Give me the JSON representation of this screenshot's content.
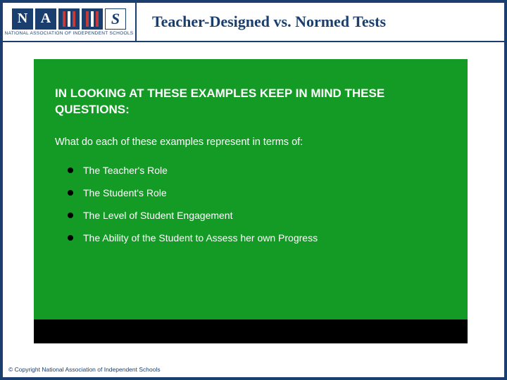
{
  "logo": {
    "letters": [
      "N",
      "A",
      "S"
    ],
    "subtitle": "NATIONAL ASSOCIATION OF INDEPENDENT SCHOOLS"
  },
  "header": {
    "title": "Teacher-Designed vs. Normed Tests"
  },
  "panel": {
    "heading": "IN LOOKING AT THESE EXAMPLES KEEP IN MIND THESE QUESTIONS:",
    "subheading": "What do each of these examples represent in terms of:",
    "bullets": [
      "The Teacher's Role",
      "The Student's  Role",
      "The Level of Student Engagement",
      "The Ability of the Student to Assess her own Progress"
    ]
  },
  "footer": {
    "copyright": "© Copyright National Association of Independent Schools"
  },
  "colors": {
    "navy": "#1a3e6e",
    "green": "#149b26",
    "black": "#000000",
    "white": "#ffffff",
    "red": "#c43b3b"
  }
}
